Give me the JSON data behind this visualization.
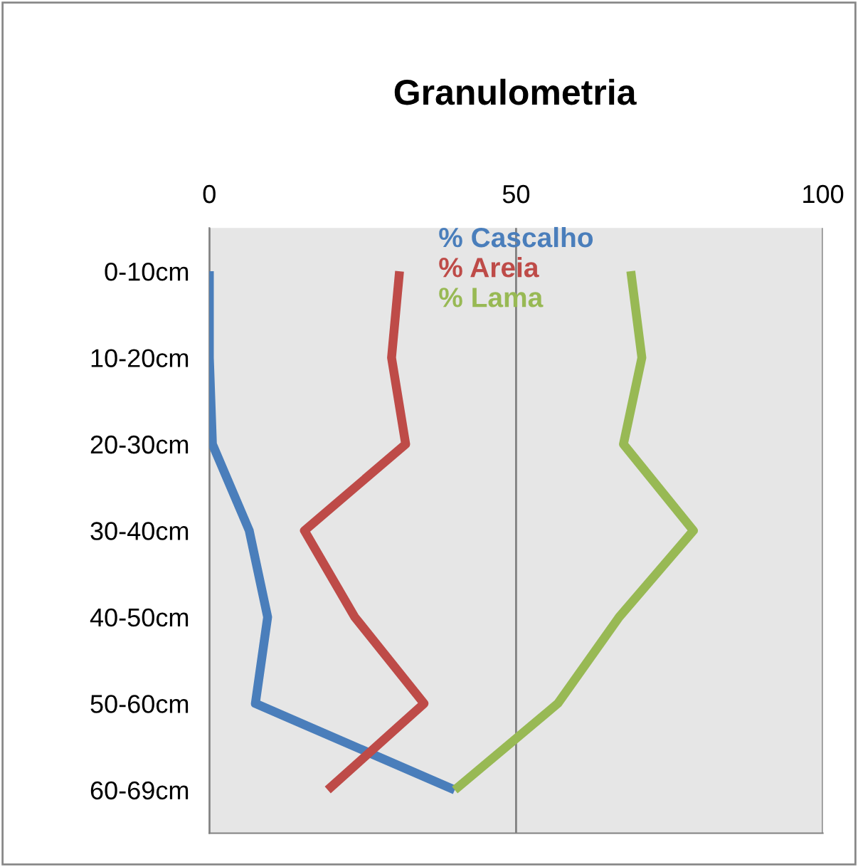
{
  "chart_data": {
    "type": "line",
    "title": "Granulometria",
    "orientation": "horizontal",
    "categories": [
      "0-10cm",
      "10-20cm",
      "20-30cm",
      "30-40cm",
      "40-50cm",
      "50-60cm",
      "60-69cm"
    ],
    "xlim": [
      0,
      100
    ],
    "xticks": [
      0,
      50,
      100
    ],
    "grid": "x",
    "legend": "top",
    "marker": "none",
    "line_style": "solid",
    "series": [
      {
        "name": "% Cascalho",
        "color": "#4a7ebb",
        "values": [
          0,
          0,
          0.5,
          6.5,
          9.5,
          7.5,
          40
        ]
      },
      {
        "name": "% Areia",
        "color": "#be4b48",
        "values": [
          31,
          29.7,
          32,
          15.5,
          23.7,
          35,
          19.3
        ]
      },
      {
        "name": "% Lama",
        "color": "#98b954",
        "values": [
          68.7,
          70.5,
          67.5,
          78.9,
          66.8,
          56.8,
          40
        ]
      }
    ]
  }
}
